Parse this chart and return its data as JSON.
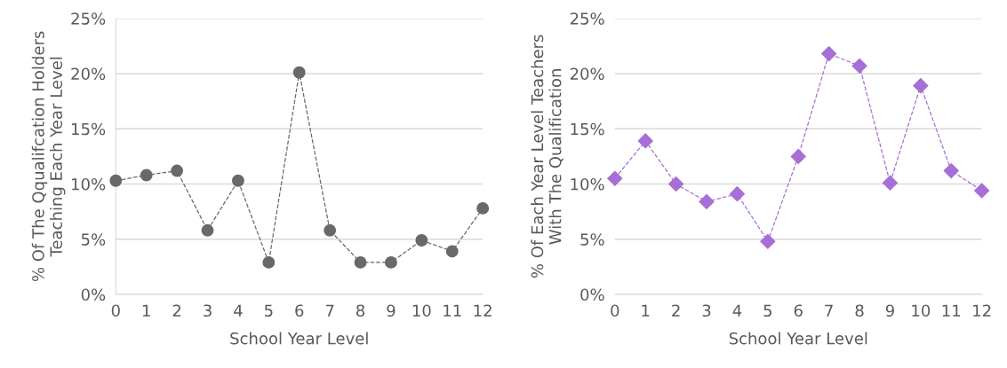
{
  "chart_data": [
    {
      "type": "line",
      "xlabel": "School Year Level",
      "ylabel": "% Of The Qqualifcation Holders\nTeaching Each Year Level",
      "categories": [
        "0",
        "1",
        "2",
        "3",
        "4",
        "5",
        "6",
        "7",
        "8",
        "9",
        "10",
        "11",
        "12"
      ],
      "series": [
        {
          "color": "#6b6868",
          "values": [
            10.3,
            10.8,
            11.2,
            5.8,
            10.3,
            2.9,
            20.1,
            5.8,
            2.9,
            2.9,
            4.9,
            3.9,
            7.8
          ]
        }
      ],
      "ylim": [
        0,
        25
      ],
      "yticks": [
        {
          "value": 0,
          "label": "0%"
        },
        {
          "value": 5,
          "label": "5%"
        },
        {
          "value": 10,
          "label": "10%"
        },
        {
          "value": 15,
          "label": "15%"
        },
        {
          "value": 20,
          "label": "20%"
        },
        {
          "value": 25,
          "label": "25%"
        }
      ],
      "grid": "y",
      "marker": "circle",
      "line_style": "dashed"
    },
    {
      "type": "line",
      "xlabel": "School Year Level",
      "ylabel": "% Of Each Year Level Teachers\nWith The Qualification",
      "categories": [
        "0",
        "1",
        "2",
        "3",
        "4",
        "5",
        "6",
        "7",
        "8",
        "9",
        "10",
        "11",
        "12"
      ],
      "series": [
        {
          "color": "#a66fd6",
          "values": [
            10.5,
            13.9,
            10.0,
            8.4,
            9.1,
            4.8,
            12.5,
            21.8,
            20.7,
            10.1,
            18.9,
            11.2,
            9.4
          ]
        }
      ],
      "ylim": [
        0,
        25
      ],
      "yticks": [
        {
          "value": 0,
          "label": "0%"
        },
        {
          "value": 5,
          "label": "5%"
        },
        {
          "value": 10,
          "label": "10%"
        },
        {
          "value": 15,
          "label": "15%"
        },
        {
          "value": 20,
          "label": "20%"
        },
        {
          "value": 25,
          "label": "25%"
        }
      ],
      "grid": "y",
      "marker": "diamond",
      "line_style": "dashed"
    }
  ]
}
